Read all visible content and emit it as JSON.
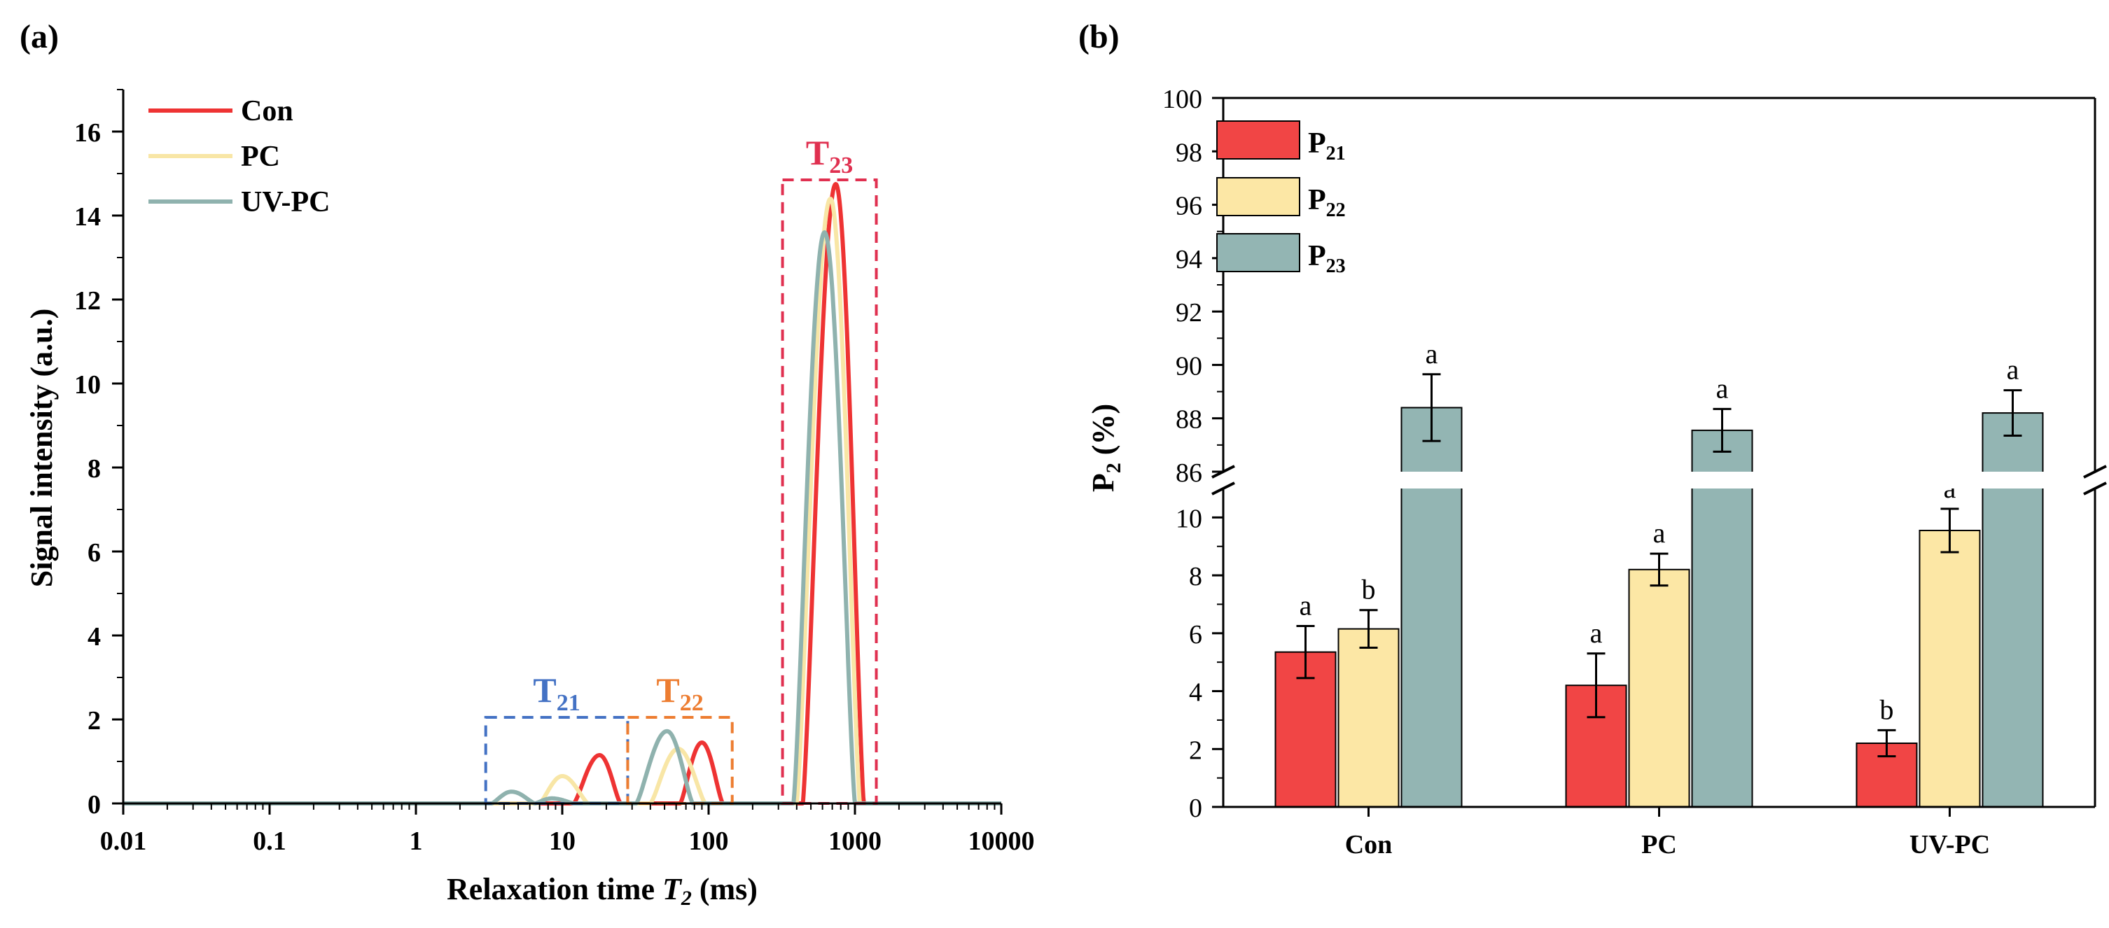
{
  "chart_data": [
    {
      "panel_label": "(a)",
      "type": "line",
      "xscale": "log",
      "xlabel_prefix": "Relaxation time ",
      "xlabel_var": "T",
      "xlabel_var_sub": "2",
      "xlabel_suffix": " (ms)",
      "ylabel": "Signal intensity (a.u.)",
      "xlim": [
        0.01,
        10000
      ],
      "ylim": [
        0,
        17
      ],
      "x_ticks": [
        0.01,
        0.1,
        1,
        10,
        100,
        1000,
        10000
      ],
      "x_tick_labels": [
        "0.01",
        "0.1",
        "1",
        "10",
        "100",
        "1000",
        "10000"
      ],
      "y_ticks": [
        0,
        2,
        4,
        6,
        8,
        10,
        12,
        14,
        16
      ],
      "y_tick_labels": [
        "0",
        "2",
        "4",
        "6",
        "8",
        "10",
        "12",
        "14",
        "16"
      ],
      "legend": [
        "Con",
        "PC",
        "UV-PC"
      ],
      "series": [
        {
          "name": "Con",
          "color": "#ee3333",
          "peaks": [
            {
              "center": 18,
              "height": 1.15,
              "from": 12,
              "to": 25
            },
            {
              "center": 90,
              "height": 1.45,
              "from": 64,
              "to": 125
            },
            {
              "center": 740,
              "height": 14.75,
              "from": 440,
              "to": 1150
            }
          ]
        },
        {
          "name": "PC",
          "color": "#f8e6a6",
          "peaks": [
            {
              "center": 10,
              "height": 0.65,
              "from": 7,
              "to": 15
            },
            {
              "center": 62,
              "height": 1.3,
              "from": 40,
              "to": 95
            },
            {
              "center": 680,
              "height": 14.4,
              "from": 400,
              "to": 1080
            }
          ]
        },
        {
          "name": "UV-PC",
          "color": "#8fb2ae",
          "peaks": [
            {
              "center": 4.5,
              "height": 0.28,
              "from": 3.3,
              "to": 6.5
            },
            {
              "center": 8.5,
              "height": 0.12,
              "from": 6.5,
              "to": 12
            },
            {
              "center": 52,
              "height": 1.72,
              "from": 32,
              "to": 78
            },
            {
              "center": 620,
              "height": 13.6,
              "from": 380,
              "to": 1000
            }
          ]
        }
      ],
      "annotations": [
        {
          "label": "T",
          "sub": "21",
          "color": "#4472c4",
          "x_range": [
            3,
            28
          ],
          "y_range": [
            0,
            2.05
          ]
        },
        {
          "label": "T",
          "sub": "22",
          "color": "#ed7d31",
          "x_range": [
            28,
            145
          ],
          "y_range": [
            0,
            2.05
          ]
        },
        {
          "label": "T",
          "sub": "23",
          "color": "#e03050",
          "x_range": [
            320,
            1400
          ],
          "y_range": [
            0,
            14.85
          ]
        }
      ]
    },
    {
      "panel_label": "(b)",
      "type": "bar",
      "ylabel_main": "P",
      "ylabel_sub": "2",
      "ylabel_suffix": " (%)",
      "categories": [
        "Con",
        "PC",
        "UV-PC"
      ],
      "y_axis_break": {
        "lower": [
          0,
          11
        ],
        "upper": [
          86,
          100
        ]
      },
      "y_ticks_lower": [
        0,
        2,
        4,
        6,
        8,
        10
      ],
      "y_tick_labels_lower": [
        "0",
        "2",
        "4",
        "6",
        "8",
        "10"
      ],
      "y_ticks_upper": [
        86,
        88,
        90,
        92,
        94,
        96,
        98,
        100
      ],
      "y_tick_labels_upper": [
        "86",
        "88",
        "90",
        "92",
        "94",
        "96",
        "98",
        "100"
      ],
      "series": [
        {
          "name": "P",
          "sub": "21",
          "color": "#f14545",
          "values": [
            5.35,
            4.2,
            2.2
          ],
          "errors": [
            0.9,
            1.1,
            0.45
          ],
          "letters": [
            "a",
            "a",
            "b"
          ]
        },
        {
          "name": "P",
          "sub": "22",
          "color": "#fce7a5",
          "values": [
            6.15,
            8.2,
            9.55
          ],
          "errors": [
            0.65,
            0.55,
            0.75
          ],
          "letters": [
            "b",
            "a",
            "a"
          ]
        },
        {
          "name": "P",
          "sub": "23",
          "color": "#93b5b3",
          "values": [
            88.4,
            87.55,
            88.2
          ],
          "errors": [
            1.25,
            0.8,
            0.85
          ],
          "letters": [
            "a",
            "a",
            "a"
          ]
        }
      ]
    }
  ]
}
